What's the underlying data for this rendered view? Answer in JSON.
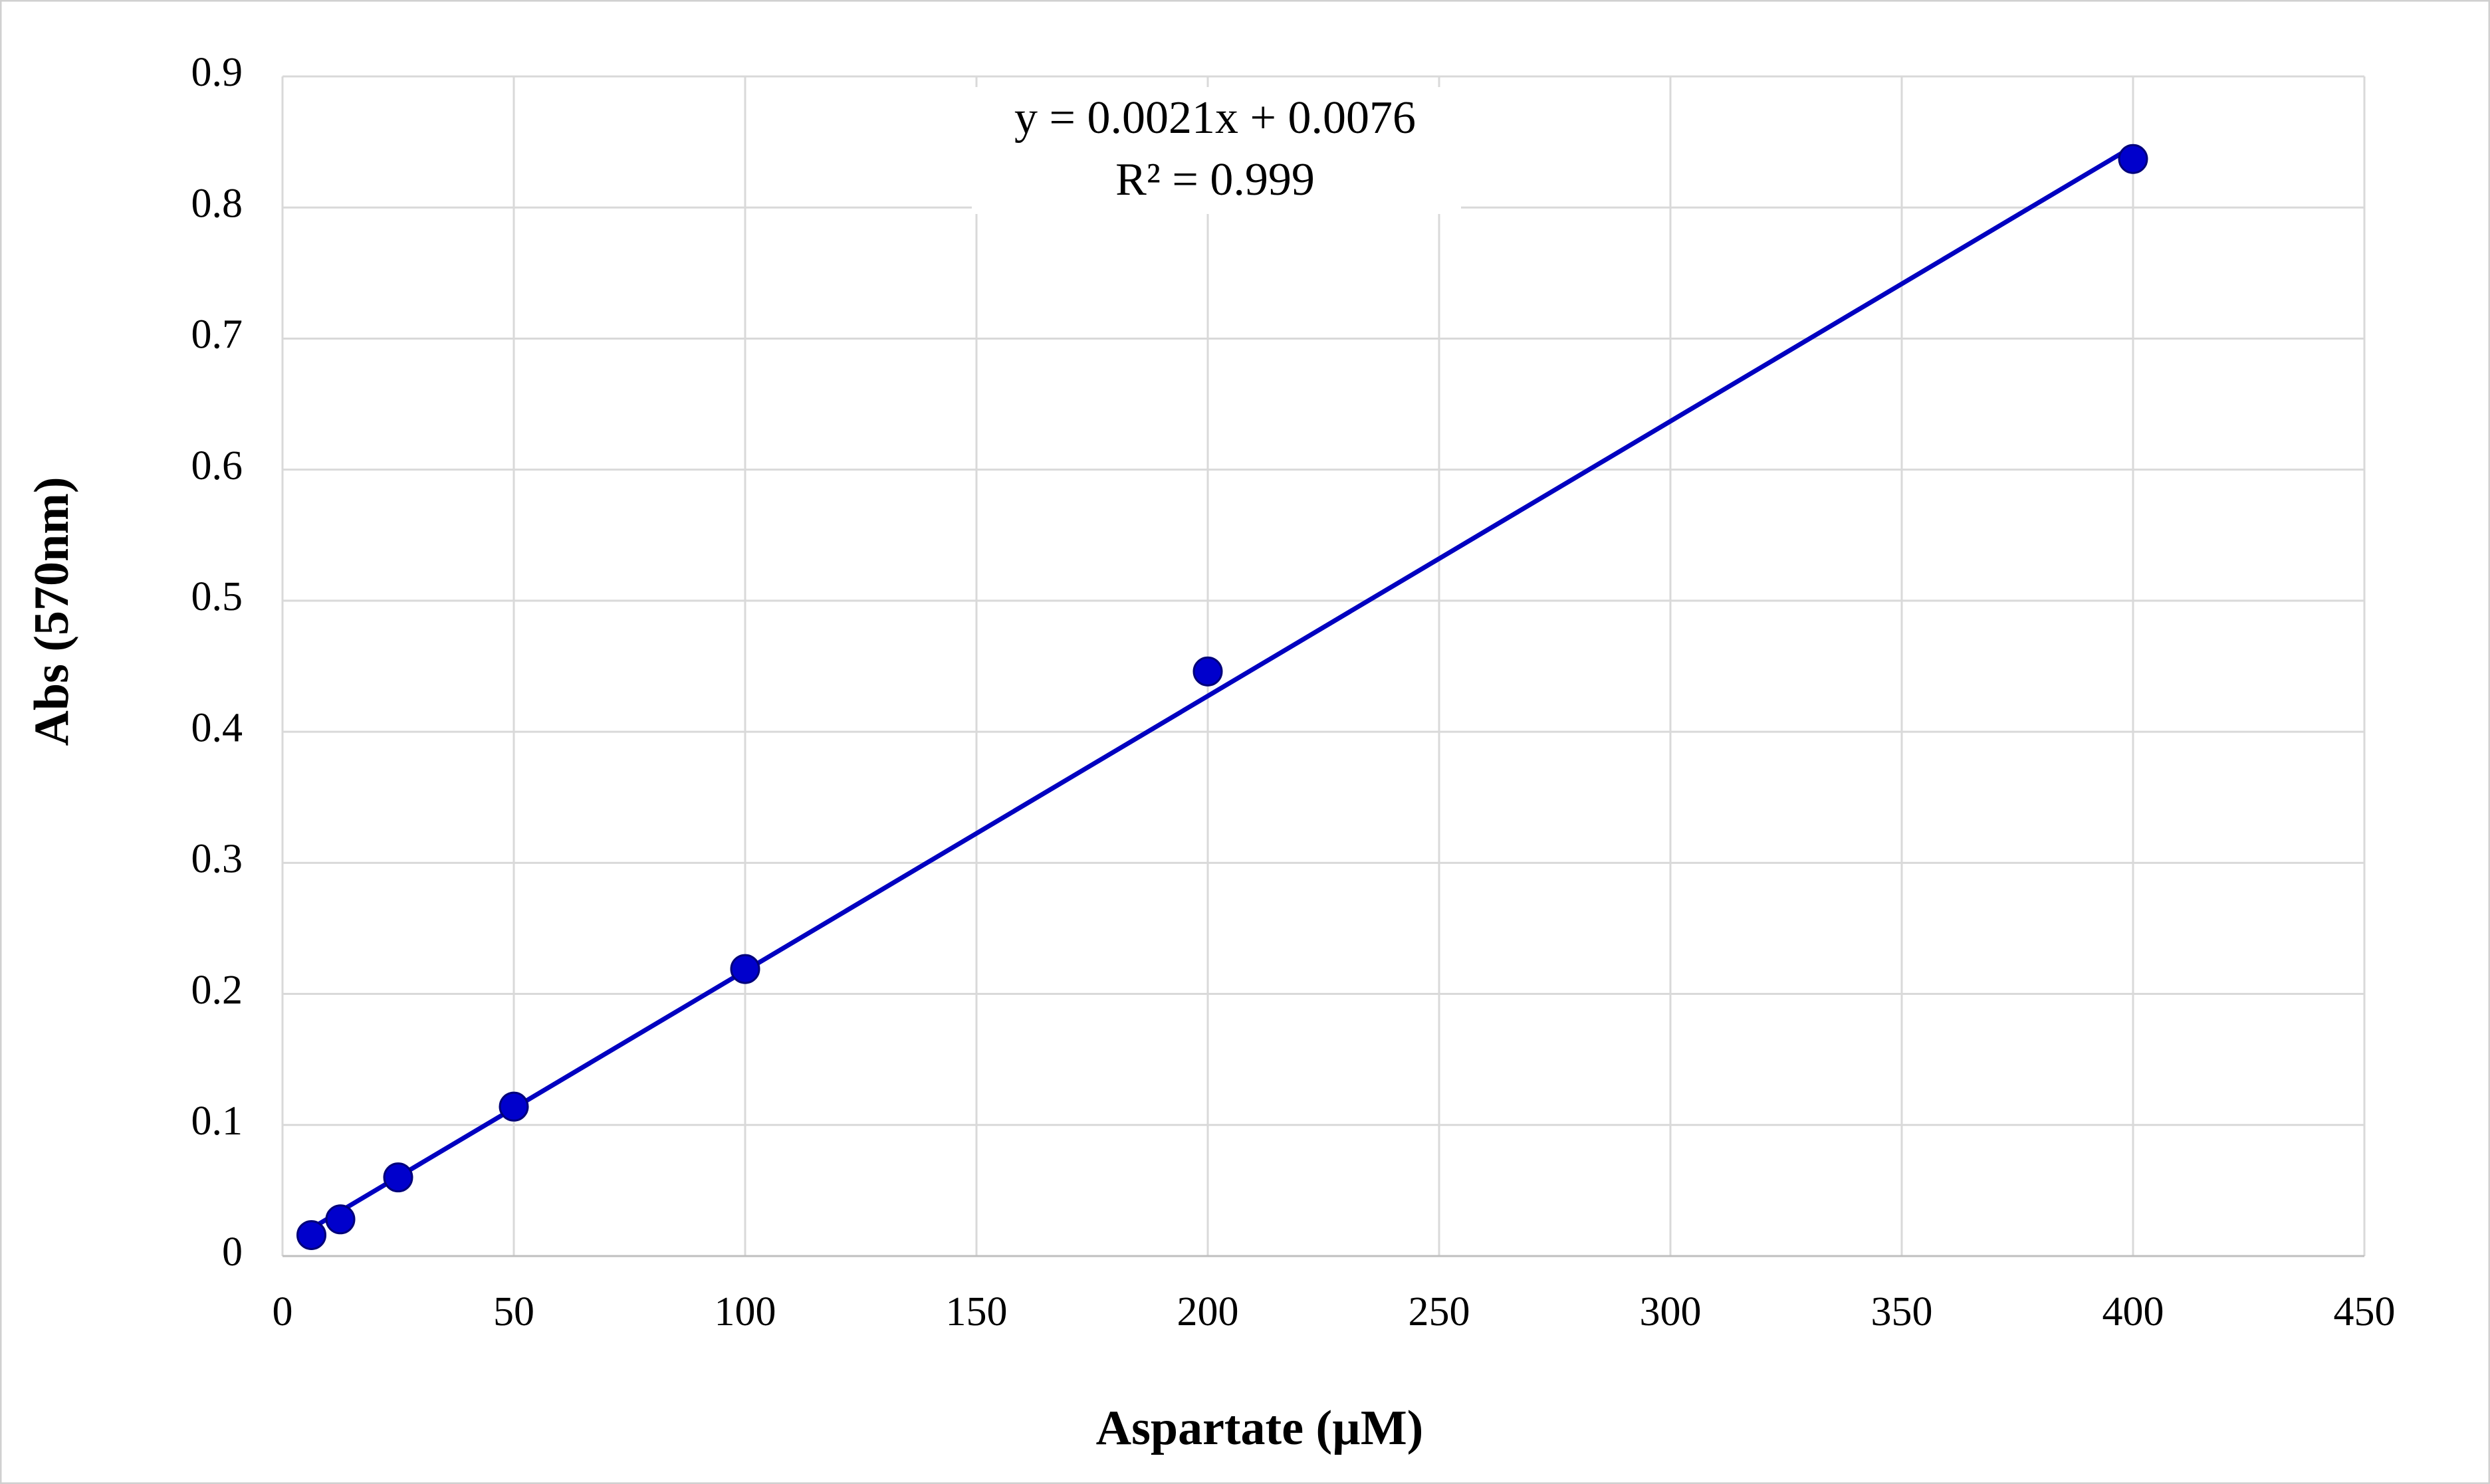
{
  "chart_data": {
    "type": "scatter",
    "x_label": "Aspartate (µM)",
    "y_label": "Abs (570nm)",
    "series": [
      {
        "color": "#0000cc",
        "x": [
          6.25,
          12.5,
          25,
          50,
          100,
          200,
          400
        ],
        "values": [
          0.016,
          0.028,
          0.06,
          0.114,
          0.219,
          0.446,
          0.837
        ]
      }
    ],
    "trendline": {
      "type": "linear",
      "color": "#0000c0",
      "equation": "y = 0.0021x + 0.0076",
      "r_squared": "R² = 0.999"
    },
    "xlim": [
      0,
      450
    ],
    "xticks": [
      0,
      50,
      100,
      150,
      200,
      250,
      300,
      350,
      400,
      450
    ],
    "ylim": [
      0,
      0.9
    ],
    "yticks": [
      0,
      0.1,
      0.2,
      0.3,
      0.4,
      0.5,
      0.6,
      0.7,
      0.8,
      0.9
    ],
    "grid": true
  }
}
